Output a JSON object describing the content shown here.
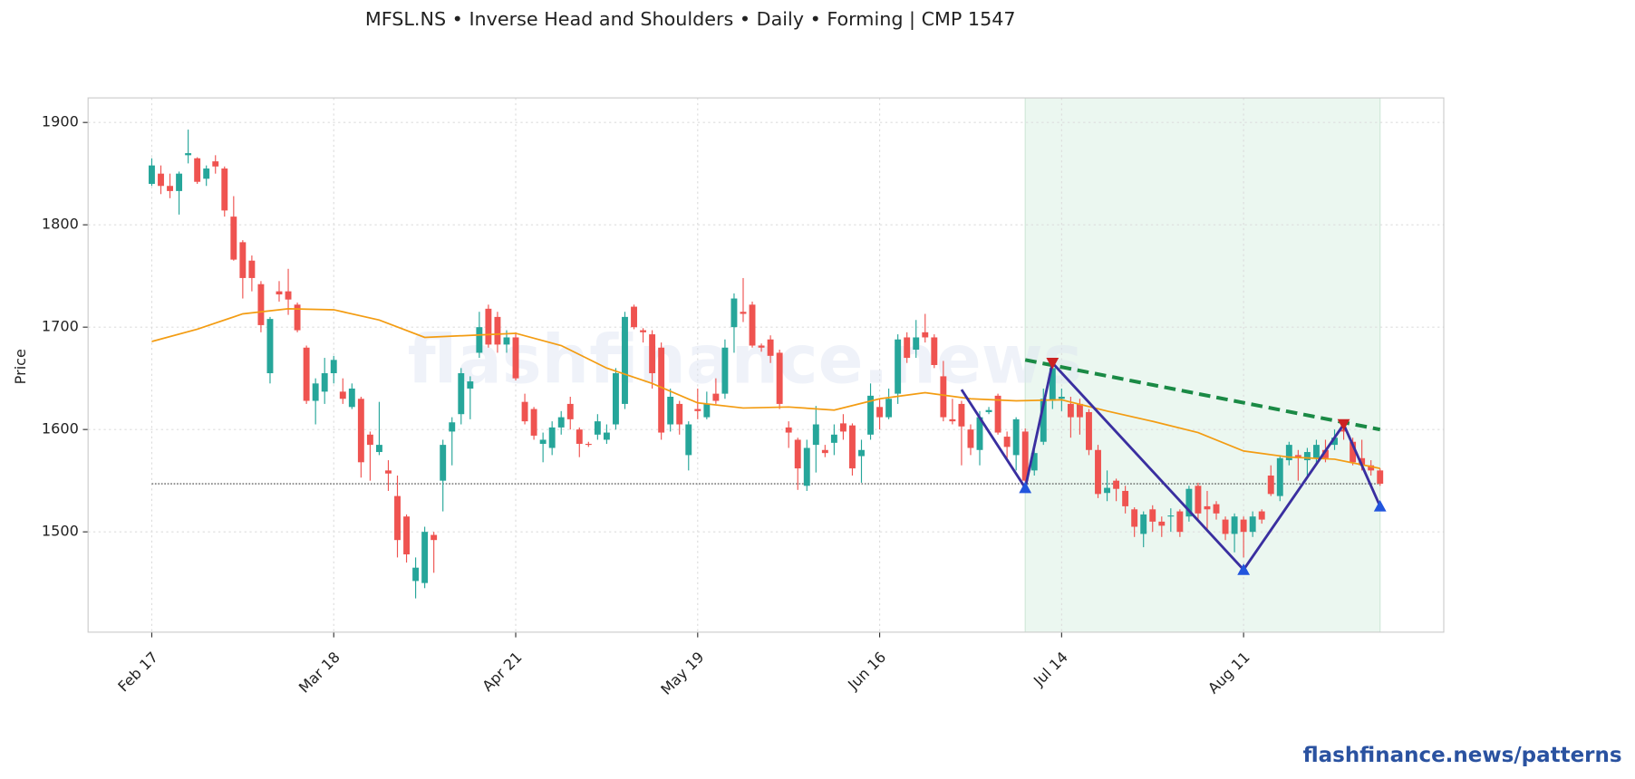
{
  "chart_data": {
    "type": "candlestick",
    "title": "MFSL.NS  •  Inverse Head and Shoulders  •  Daily  •  Forming  |  CMP 1547",
    "ylabel": "Price",
    "categories": [
      "Feb 17",
      null,
      null,
      null,
      null,
      null,
      null,
      null,
      null,
      null,
      null,
      null,
      null,
      null,
      null,
      null,
      null,
      null,
      null,
      null,
      "Mar 18",
      null,
      null,
      null,
      null,
      null,
      null,
      null,
      null,
      null,
      null,
      null,
      null,
      null,
      null,
      null,
      null,
      null,
      null,
      null,
      "Apr 21",
      null,
      null,
      null,
      null,
      null,
      null,
      null,
      null,
      null,
      null,
      null,
      null,
      null,
      null,
      null,
      null,
      null,
      null,
      null,
      "May 19",
      null,
      null,
      null,
      null,
      null,
      null,
      null,
      null,
      null,
      null,
      null,
      null,
      null,
      null,
      null,
      null,
      null,
      null,
      null,
      "Jun 16",
      null,
      null,
      null,
      null,
      null,
      null,
      null,
      null,
      null,
      null,
      null,
      null,
      null,
      null,
      null,
      null,
      null,
      null,
      null,
      "Jul 14",
      null,
      null,
      null,
      null,
      null,
      null,
      null,
      null,
      null,
      null,
      null,
      null,
      null,
      null,
      null,
      null,
      null,
      null,
      null,
      "Aug 11",
      null,
      null,
      null,
      null,
      null,
      null,
      null,
      null,
      null,
      null,
      null,
      null,
      null,
      null,
      null
    ],
    "open": [
      1840,
      1850,
      1838,
      1833,
      1868,
      1865,
      1845,
      1862,
      1855,
      1808,
      1783,
      1765,
      1742,
      1655,
      1735,
      1735,
      1722,
      1680,
      1628,
      1637,
      1655,
      1637,
      1622,
      1630,
      1595,
      1578,
      1560,
      1535,
      1515,
      1452,
      1450,
      1497,
      1550,
      1598,
      1615,
      1640,
      1675,
      1718,
      1710,
      1683,
      1690,
      1627,
      1620,
      1586,
      1582,
      1602,
      1625,
      1600,
      1586,
      1595,
      1590,
      1605,
      1625,
      1720,
      1697,
      1693,
      1680,
      1605,
      1625,
      1575,
      1620,
      1612,
      1635,
      1635,
      1700,
      1715,
      1722,
      1682,
      1688,
      1675,
      1602,
      1590,
      1545,
      1585,
      1580,
      1587,
      1606,
      1604,
      1574,
      1595,
      1622,
      1612,
      1635,
      1690,
      1678,
      1695,
      1690,
      1652,
      1610,
      1625,
      1600,
      1580,
      1617,
      1633,
      1593,
      1575,
      1598,
      1560,
      1588,
      1628,
      1630,
      1625,
      1625,
      1617,
      1580,
      1538,
      1550,
      1540,
      1522,
      1498,
      1522,
      1510,
      1515,
      1520,
      1515,
      1545,
      1525,
      1527,
      1512,
      1498,
      1512,
      1500,
      1520,
      1555,
      1535,
      1570,
      1575,
      1570,
      1572,
      1580,
      1585,
      1600,
      1588,
      1572,
      1565,
      1560
    ],
    "high": [
      1865,
      1858,
      1850,
      1852,
      1893,
      1866,
      1858,
      1868,
      1857,
      1828,
      1785,
      1770,
      1745,
      1710,
      1745,
      1757,
      1724,
      1682,
      1650,
      1670,
      1672,
      1650,
      1645,
      1632,
      1598,
      1627,
      1570,
      1555,
      1517,
      1475,
      1505,
      1500,
      1590,
      1612,
      1660,
      1652,
      1715,
      1722,
      1715,
      1697,
      1695,
      1635,
      1622,
      1597,
      1608,
      1618,
      1632,
      1602,
      1588,
      1615,
      1605,
      1660,
      1715,
      1722,
      1699,
      1697,
      1685,
      1640,
      1628,
      1608,
      1640,
      1637,
      1650,
      1688,
      1733,
      1748,
      1725,
      1684,
      1692,
      1678,
      1608,
      1592,
      1590,
      1623,
      1585,
      1605,
      1615,
      1606,
      1590,
      1645,
      1630,
      1640,
      1693,
      1695,
      1707,
      1713,
      1693,
      1667,
      1630,
      1628,
      1605,
      1618,
      1622,
      1635,
      1598,
      1612,
      1601,
      1580,
      1640,
      1666,
      1640,
      1632,
      1630,
      1620,
      1585,
      1560,
      1552,
      1545,
      1524,
      1520,
      1526,
      1515,
      1523,
      1522,
      1545,
      1548,
      1540,
      1530,
      1515,
      1518,
      1515,
      1520,
      1522,
      1565,
      1575,
      1588,
      1580,
      1582,
      1590,
      1590,
      1600,
      1605,
      1592,
      1590,
      1570,
      1562
    ],
    "low": [
      1838,
      1830,
      1826,
      1810,
      1860,
      1840,
      1838,
      1850,
      1808,
      1765,
      1728,
      1735,
      1695,
      1645,
      1725,
      1712,
      1695,
      1625,
      1605,
      1625,
      1645,
      1625,
      1620,
      1553,
      1550,
      1575,
      1540,
      1475,
      1470,
      1435,
      1445,
      1460,
      1520,
      1565,
      1605,
      1610,
      1670,
      1680,
      1675,
      1675,
      1648,
      1605,
      1590,
      1568,
      1575,
      1595,
      1600,
      1573,
      1583,
      1590,
      1586,
      1600,
      1620,
      1698,
      1685,
      1640,
      1590,
      1598,
      1595,
      1560,
      1610,
      1610,
      1625,
      1630,
      1675,
      1705,
      1680,
      1676,
      1665,
      1620,
      1582,
      1541,
      1540,
      1558,
      1573,
      1575,
      1590,
      1555,
      1548,
      1590,
      1600,
      1610,
      1625,
      1665,
      1670,
      1685,
      1660,
      1608,
      1605,
      1565,
      1575,
      1565,
      1615,
      1595,
      1570,
      1560,
      1545,
      1555,
      1585,
      1620,
      1618,
      1592,
      1595,
      1575,
      1533,
      1530,
      1530,
      1518,
      1495,
      1485,
      1500,
      1495,
      1500,
      1495,
      1510,
      1512,
      1500,
      1512,
      1492,
      1480,
      1475,
      1495,
      1508,
      1535,
      1530,
      1565,
      1550,
      1555,
      1565,
      1568,
      1580,
      1590,
      1565,
      1560,
      1555,
      1545
    ],
    "close": [
      1858,
      1838,
      1833,
      1850,
      1870,
      1842,
      1855,
      1857,
      1814,
      1766,
      1748,
      1748,
      1702,
      1708,
      1732,
      1727,
      1697,
      1628,
      1645,
      1655,
      1668,
      1630,
      1640,
      1568,
      1585,
      1585,
      1557,
      1492,
      1478,
      1465,
      1500,
      1492,
      1585,
      1607,
      1655,
      1647,
      1700,
      1683,
      1683,
      1690,
      1650,
      1608,
      1594,
      1590,
      1602,
      1612,
      1610,
      1586,
      1585,
      1608,
      1597,
      1655,
      1710,
      1700,
      1695,
      1655,
      1597,
      1632,
      1605,
      1605,
      1618,
      1625,
      1628,
      1680,
      1728,
      1713,
      1682,
      1680,
      1672,
      1625,
      1597,
      1562,
      1582,
      1605,
      1577,
      1595,
      1598,
      1562,
      1580,
      1633,
      1612,
      1630,
      1688,
      1670,
      1690,
      1690,
      1663,
      1612,
      1608,
      1603,
      1582,
      1612,
      1619,
      1597,
      1583,
      1610,
      1550,
      1577,
      1630,
      1660,
      1632,
      1612,
      1612,
      1580,
      1537,
      1543,
      1542,
      1525,
      1505,
      1517,
      1510,
      1506,
      1516,
      1500,
      1542,
      1518,
      1522,
      1518,
      1498,
      1515,
      1500,
      1515,
      1512,
      1537,
      1572,
      1585,
      1572,
      1578,
      1585,
      1572,
      1592,
      1598,
      1568,
      1565,
      1560,
      1547
    ],
    "up_color": "#26a69a",
    "down_color": "#ef5350",
    "xlim": [
      -7,
      142
    ],
    "ylim": [
      1402,
      1924
    ],
    "yticks": [
      1500,
      1600,
      1700,
      1800,
      1900
    ],
    "grid": true,
    "sma": {
      "color": "#f39c12",
      "x": [
        0,
        5,
        10,
        15,
        20,
        25,
        30,
        35,
        40,
        45,
        50,
        55,
        60,
        65,
        70,
        75,
        80,
        85,
        90,
        95,
        100,
        105,
        110,
        115,
        120,
        125,
        130,
        135
      ],
      "values": [
        1686,
        1698,
        1713,
        1718,
        1717,
        1707,
        1690,
        1692,
        1694,
        1682,
        1660,
        1645,
        1626,
        1621,
        1622,
        1619,
        1630,
        1636,
        1630,
        1628,
        1629,
        1618,
        1608,
        1597,
        1579,
        1573,
        1571,
        1562
      ]
    },
    "pattern": {
      "color": "#3a2fa0",
      "x": [
        89,
        96,
        99,
        120,
        131,
        135
      ],
      "values": [
        1639,
        1543,
        1665,
        1463,
        1605,
        1525
      ],
      "markers": [
        "none",
        "trough",
        "peak",
        "trough",
        "peak",
        "trough"
      ],
      "trough_color": "#2255dd",
      "peak_color": "#cc2222"
    },
    "neckline": {
      "color": "#1a8a45",
      "x": [
        96,
        135
      ],
      "values": [
        1668,
        1600
      ]
    },
    "pattern_zone": {
      "color": "#e3f3ea",
      "x": [
        96,
        135
      ]
    },
    "cmp": {
      "value": 1547,
      "x": [
        0,
        135
      ],
      "color": "#444"
    }
  },
  "watermark": "flashfinance.news",
  "footer": "flashfinance.news/patterns"
}
